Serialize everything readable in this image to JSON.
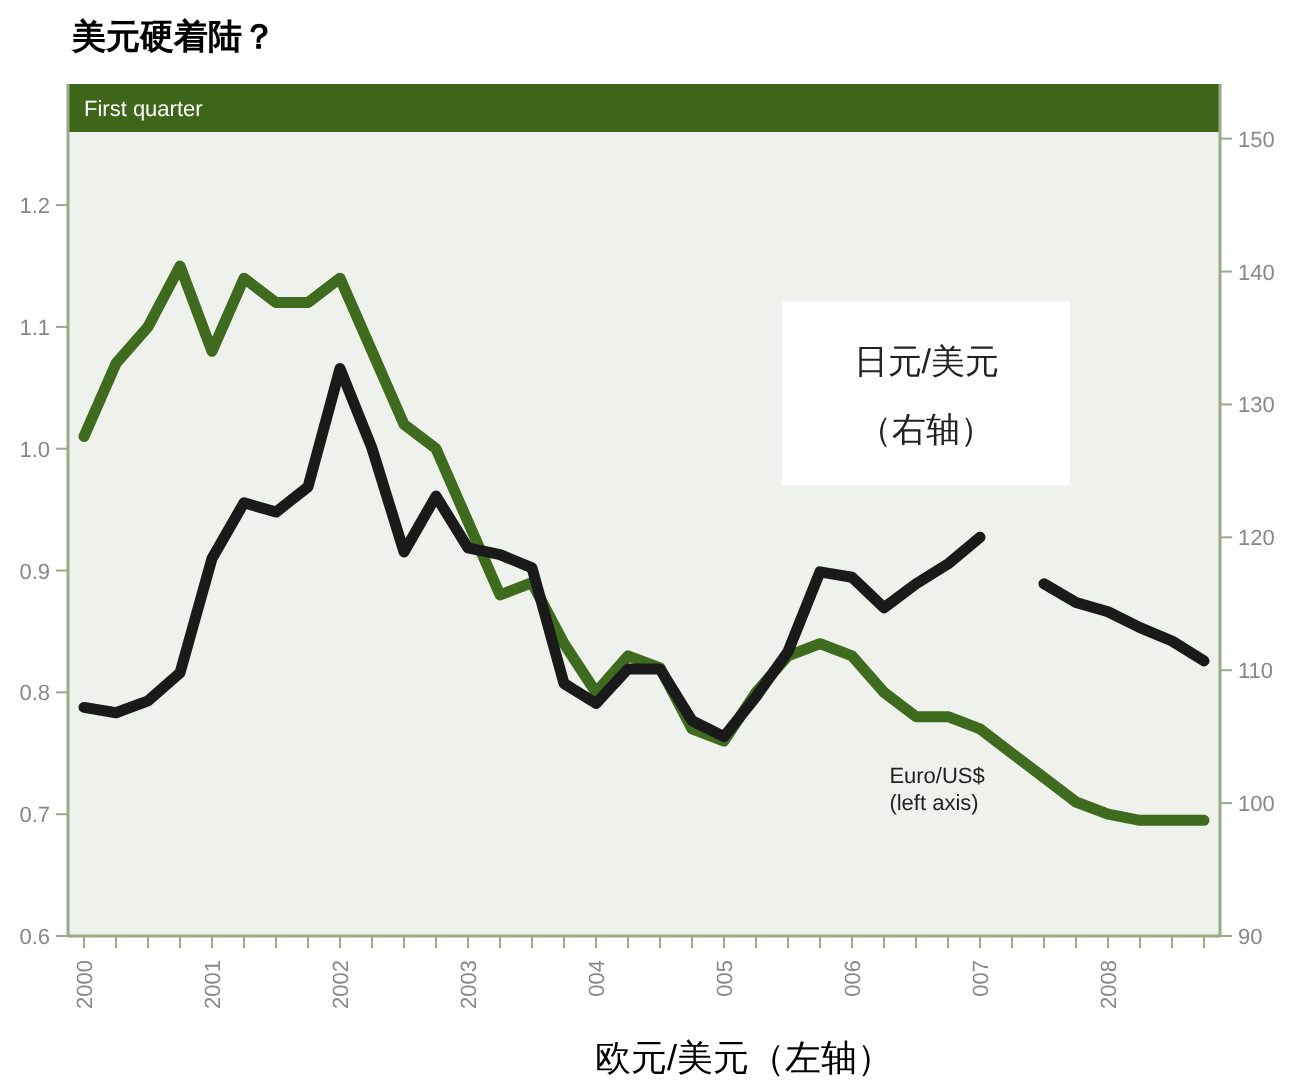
{
  "chart_data": {
    "type": "line",
    "title": "美元硬着陆？",
    "annotations": [
      "First quarter",
      "欧元/美元（左轴）"
    ],
    "categories": [
      "2000",
      null,
      null,
      null,
      "2001",
      null,
      null,
      null,
      "2002",
      null,
      null,
      null,
      "2003",
      null,
      null,
      null,
      "004",
      null,
      null,
      null,
      "005",
      null,
      null,
      null,
      "006",
      null,
      null,
      null,
      "007",
      null,
      null,
      null,
      "2008",
      null,
      null,
      null
    ],
    "series": [
      {
        "name": "Euro/US$ (left axis)",
        "color": "#3f6b1e",
        "axis": "y",
        "values": [
          1.01,
          1.07,
          1.1,
          1.15,
          1.08,
          1.14,
          1.12,
          1.12,
          1.14,
          1.08,
          1.02,
          1.0,
          0.94,
          0.88,
          0.89,
          0.84,
          0.8,
          0.83,
          0.82,
          0.77,
          0.76,
          0.8,
          0.83,
          0.84,
          0.83,
          0.8,
          0.78,
          0.78,
          0.77,
          0.75,
          0.73,
          0.71,
          0.7,
          0.695,
          0.695,
          0.695
        ]
      },
      {
        "name": "日元/美元（右轴）",
        "color": "#1a1a1a",
        "axis": "y2",
        "values": [
          107.2,
          106.8,
          107.7,
          109.8,
          118.4,
          122.6,
          121.9,
          123.8,
          132.7,
          126.7,
          118.9,
          123.1,
          119.2,
          118.7,
          117.7,
          109.0,
          107.5,
          110.1,
          110.1,
          106.2,
          105.0,
          108.0,
          111.4,
          117.4,
          117.0,
          114.7,
          116.5,
          118.0,
          120.0,
          null,
          116.5,
          115.1,
          114.4,
          113.2,
          112.2,
          110.7
        ]
      }
    ],
    "ylim": [
      0.6,
      1.26
    ],
    "yticks": [
      0.6,
      0.7,
      0.8,
      0.9,
      {
        "value": 1,
        "label": "1.0"
      },
      1.1,
      1.2
    ],
    "y2lim": [
      90,
      150.5
    ],
    "y2ticks": [
      90,
      100,
      110,
      120,
      130,
      140,
      150
    ],
    "grid": false,
    "legend": false
  }
}
